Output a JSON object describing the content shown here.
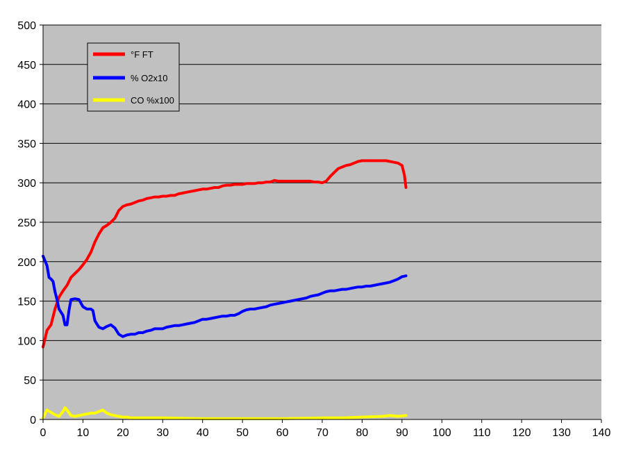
{
  "chart_data": {
    "type": "line",
    "title": "",
    "xlabel": "",
    "ylabel": "",
    "xlim": [
      0,
      140
    ],
    "ylim": [
      0,
      500
    ],
    "x_ticks": [
      "0",
      "10",
      "20",
      "30",
      "40",
      "50",
      "60",
      "70",
      "80",
      "90",
      "100",
      "110",
      "120",
      "130",
      "140"
    ],
    "y_ticks": [
      "0",
      "50",
      "100",
      "150",
      "200",
      "250",
      "300",
      "350",
      "400",
      "450",
      "500"
    ],
    "grid": "horizontal",
    "plot_background": "#c0c0c0",
    "legend_position": "top-left",
    "series": [
      {
        "name": "°F FT",
        "color": "#ff0000",
        "points": [
          [
            0,
            92
          ],
          [
            1,
            113
          ],
          [
            2,
            120
          ],
          [
            3,
            140
          ],
          [
            4,
            155
          ],
          [
            5,
            163
          ],
          [
            6,
            170
          ],
          [
            7,
            180
          ],
          [
            8,
            185
          ],
          [
            9,
            190
          ],
          [
            10,
            196
          ],
          [
            11,
            203
          ],
          [
            12,
            212
          ],
          [
            13,
            225
          ],
          [
            14,
            235
          ],
          [
            15,
            243
          ],
          [
            16,
            246
          ],
          [
            17,
            250
          ],
          [
            18,
            255
          ],
          [
            19,
            265
          ],
          [
            20,
            270
          ],
          [
            21,
            272
          ],
          [
            22,
            273
          ],
          [
            23,
            275
          ],
          [
            24,
            277
          ],
          [
            25,
            278
          ],
          [
            26,
            280
          ],
          [
            27,
            281
          ],
          [
            28,
            282
          ],
          [
            29,
            282
          ],
          [
            30,
            283
          ],
          [
            31,
            283
          ],
          [
            32,
            284
          ],
          [
            33,
            284
          ],
          [
            34,
            286
          ],
          [
            35,
            287
          ],
          [
            36,
            288
          ],
          [
            37,
            289
          ],
          [
            38,
            290
          ],
          [
            39,
            291
          ],
          [
            40,
            292
          ],
          [
            41,
            292
          ],
          [
            42,
            293
          ],
          [
            43,
            294
          ],
          [
            44,
            294
          ],
          [
            45,
            296
          ],
          [
            46,
            297
          ],
          [
            47,
            297
          ],
          [
            48,
            298
          ],
          [
            49,
            298
          ],
          [
            50,
            298
          ],
          [
            51,
            299
          ],
          [
            52,
            299
          ],
          [
            53,
            299
          ],
          [
            54,
            300
          ],
          [
            55,
            300
          ],
          [
            56,
            301
          ],
          [
            57,
            301
          ],
          [
            58,
            303
          ],
          [
            59,
            302
          ],
          [
            60,
            302
          ],
          [
            61,
            302
          ],
          [
            62,
            302
          ],
          [
            63,
            302
          ],
          [
            64,
            302
          ],
          [
            65,
            302
          ],
          [
            66,
            302
          ],
          [
            67,
            302
          ],
          [
            68,
            301
          ],
          [
            69,
            301
          ],
          [
            70,
            300
          ],
          [
            71,
            302
          ],
          [
            72,
            308
          ],
          [
            73,
            313
          ],
          [
            74,
            318
          ],
          [
            75,
            320
          ],
          [
            76,
            322
          ],
          [
            77,
            323
          ],
          [
            78,
            325
          ],
          [
            79,
            327
          ],
          [
            80,
            328
          ],
          [
            81,
            328
          ],
          [
            82,
            328
          ],
          [
            83,
            328
          ],
          [
            84,
            328
          ],
          [
            85,
            328
          ],
          [
            86,
            328
          ],
          [
            87,
            327
          ],
          [
            88,
            326
          ],
          [
            89,
            325
          ],
          [
            90,
            322
          ],
          [
            90.6,
            310
          ],
          [
            91,
            294
          ]
        ]
      },
      {
        "name": "% O2x10",
        "color": "#0000ff",
        "points": [
          [
            0,
            207
          ],
          [
            1,
            195
          ],
          [
            1.5,
            180
          ],
          [
            2,
            178
          ],
          [
            2.5,
            175
          ],
          [
            3,
            162
          ],
          [
            3.5,
            152
          ],
          [
            4,
            140
          ],
          [
            5,
            132
          ],
          [
            5.5,
            120
          ],
          [
            6,
            120
          ],
          [
            6.5,
            138
          ],
          [
            7,
            152
          ],
          [
            8,
            153
          ],
          [
            9,
            152
          ],
          [
            10,
            143
          ],
          [
            11,
            140
          ],
          [
            12,
            140
          ],
          [
            12.5,
            138
          ],
          [
            13,
            125
          ],
          [
            14,
            117
          ],
          [
            15,
            115
          ],
          [
            16,
            118
          ],
          [
            17,
            120
          ],
          [
            18,
            116
          ],
          [
            19,
            108
          ],
          [
            20,
            105
          ],
          [
            21,
            107
          ],
          [
            22,
            108
          ],
          [
            23,
            108
          ],
          [
            24,
            110
          ],
          [
            25,
            110
          ],
          [
            26,
            112
          ],
          [
            27,
            113
          ],
          [
            28,
            115
          ],
          [
            29,
            115
          ],
          [
            30,
            115
          ],
          [
            31,
            117
          ],
          [
            32,
            118
          ],
          [
            33,
            119
          ],
          [
            34,
            119
          ],
          [
            35,
            120
          ],
          [
            36,
            121
          ],
          [
            37,
            122
          ],
          [
            38,
            123
          ],
          [
            39,
            125
          ],
          [
            40,
            127
          ],
          [
            41,
            127
          ],
          [
            42,
            128
          ],
          [
            43,
            129
          ],
          [
            44,
            130
          ],
          [
            45,
            131
          ],
          [
            46,
            131
          ],
          [
            47,
            132
          ],
          [
            48,
            132
          ],
          [
            49,
            134
          ],
          [
            50,
            137
          ],
          [
            51,
            139
          ],
          [
            52,
            140
          ],
          [
            53,
            140
          ],
          [
            54,
            141
          ],
          [
            55,
            142
          ],
          [
            56,
            143
          ],
          [
            57,
            145
          ],
          [
            58,
            146
          ],
          [
            59,
            147
          ],
          [
            60,
            148
          ],
          [
            61,
            149
          ],
          [
            62,
            150
          ],
          [
            63,
            151
          ],
          [
            64,
            152
          ],
          [
            65,
            153
          ],
          [
            66,
            154
          ],
          [
            67,
            156
          ],
          [
            68,
            157
          ],
          [
            69,
            158
          ],
          [
            70,
            160
          ],
          [
            71,
            162
          ],
          [
            72,
            163
          ],
          [
            73,
            163
          ],
          [
            74,
            164
          ],
          [
            75,
            165
          ],
          [
            76,
            165
          ],
          [
            77,
            166
          ],
          [
            78,
            167
          ],
          [
            79,
            168
          ],
          [
            80,
            168
          ],
          [
            81,
            169
          ],
          [
            82,
            169
          ],
          [
            83,
            170
          ],
          [
            84,
            171
          ],
          [
            85,
            172
          ],
          [
            86,
            173
          ],
          [
            87,
            174
          ],
          [
            88,
            176
          ],
          [
            89,
            178
          ],
          [
            90,
            181
          ],
          [
            91,
            182
          ]
        ]
      },
      {
        "name": "CO %x100",
        "color": "#ffff00",
        "points": [
          [
            0,
            2
          ],
          [
            1,
            12
          ],
          [
            2,
            9
          ],
          [
            3,
            6
          ],
          [
            4,
            4
          ],
          [
            5,
            10
          ],
          [
            5.5,
            15
          ],
          [
            6,
            12
          ],
          [
            7,
            5
          ],
          [
            8,
            4
          ],
          [
            9,
            5
          ],
          [
            10,
            6
          ],
          [
            11,
            7
          ],
          [
            12,
            8
          ],
          [
            13,
            8
          ],
          [
            14,
            10
          ],
          [
            15,
            12
          ],
          [
            16,
            8
          ],
          [
            17,
            6
          ],
          [
            18,
            5
          ],
          [
            19,
            4
          ],
          [
            20,
            3
          ],
          [
            21,
            3
          ],
          [
            22,
            2
          ],
          [
            25,
            2
          ],
          [
            30,
            2
          ],
          [
            40,
            1
          ],
          [
            50,
            1
          ],
          [
            60,
            1
          ],
          [
            70,
            2
          ],
          [
            75,
            2
          ],
          [
            80,
            3
          ],
          [
            85,
            4
          ],
          [
            87,
            5
          ],
          [
            89,
            4
          ],
          [
            91,
            5
          ]
        ]
      }
    ]
  }
}
